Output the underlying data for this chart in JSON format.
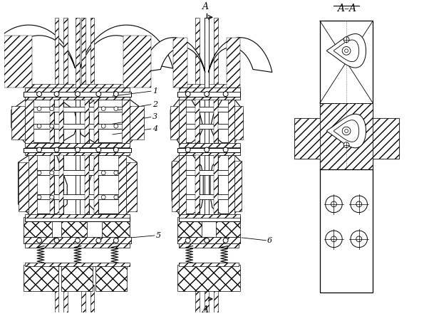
{
  "bg_color": "#ffffff",
  "line_color": "#000000",
  "section_title": "A–A",
  "labels": [
    "1",
    "2",
    "3",
    "4",
    "5",
    "6"
  ],
  "figsize": [
    5.95,
    4.44
  ],
  "dpi": 100
}
